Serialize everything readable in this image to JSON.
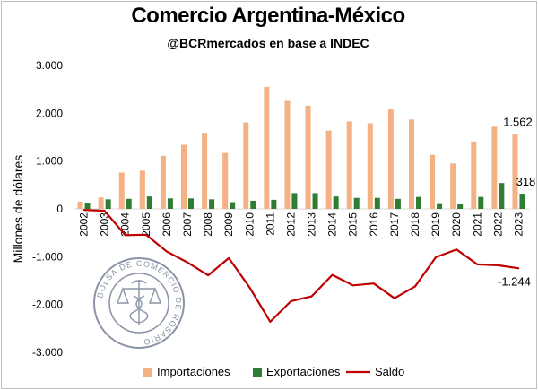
{
  "chart_data": {
    "type": "bar",
    "title": "Comercio Argentina-México",
    "subtitle": "@BCRmercados en base a INDEC",
    "ylabel": "Millones de dólares",
    "ylim": [
      -3000,
      3000
    ],
    "yticks": [
      3000,
      2000,
      1000,
      0,
      -1000,
      -2000,
      -3000
    ],
    "ytick_labels": [
      "3.000",
      "2.000",
      "1.000",
      "0",
      "-1.000",
      "-2.000",
      "-3.000"
    ],
    "categories": [
      "2002",
      "2003",
      "2004",
      "2005",
      "2006",
      "2007",
      "2008",
      "2009",
      "2010",
      "2011",
      "2012",
      "2013",
      "2014",
      "2015",
      "2016",
      "2017",
      "2018",
      "2019",
      "2020",
      "2021",
      "2022",
      "2023"
    ],
    "series": [
      {
        "name": "Importaciones",
        "type": "bar",
        "color": "#f4b183",
        "values": [
          150,
          240,
          760,
          800,
          1110,
          1340,
          1590,
          1170,
          1810,
          2550,
          2260,
          2160,
          1640,
          1830,
          1790,
          2080,
          1870,
          1130,
          950,
          1410,
          1720,
          1562
        ]
      },
      {
        "name": "Exportaciones",
        "type": "bar",
        "color": "#2e7d32",
        "values": [
          130,
          200,
          210,
          260,
          220,
          220,
          200,
          140,
          170,
          190,
          330,
          330,
          260,
          230,
          230,
          210,
          250,
          120,
          100,
          250,
          540,
          318
        ]
      },
      {
        "name": "Saldo",
        "type": "line",
        "color": "#c00000",
        "values": [
          -20,
          -40,
          -550,
          -540,
          -890,
          -1120,
          -1390,
          -1030,
          -1640,
          -2360,
          -1930,
          -1830,
          -1380,
          -1600,
          -1560,
          -1870,
          -1620,
          -1010,
          -850,
          -1160,
          -1180,
          -1244
        ]
      }
    ],
    "data_labels": [
      {
        "series": "Importaciones",
        "category": "2023",
        "text": "1.562"
      },
      {
        "series": "Exportaciones",
        "category": "2023",
        "text": "318"
      },
      {
        "series": "Saldo",
        "category": "2023",
        "text": "-1.244"
      }
    ],
    "legend": {
      "position": "bottom"
    },
    "grid": false
  },
  "watermark": {
    "text": "BOLSA DE COMERCIO DE ROSARIO",
    "icon": "caduceus-scale-seal-icon",
    "color": "#8a94a6"
  }
}
